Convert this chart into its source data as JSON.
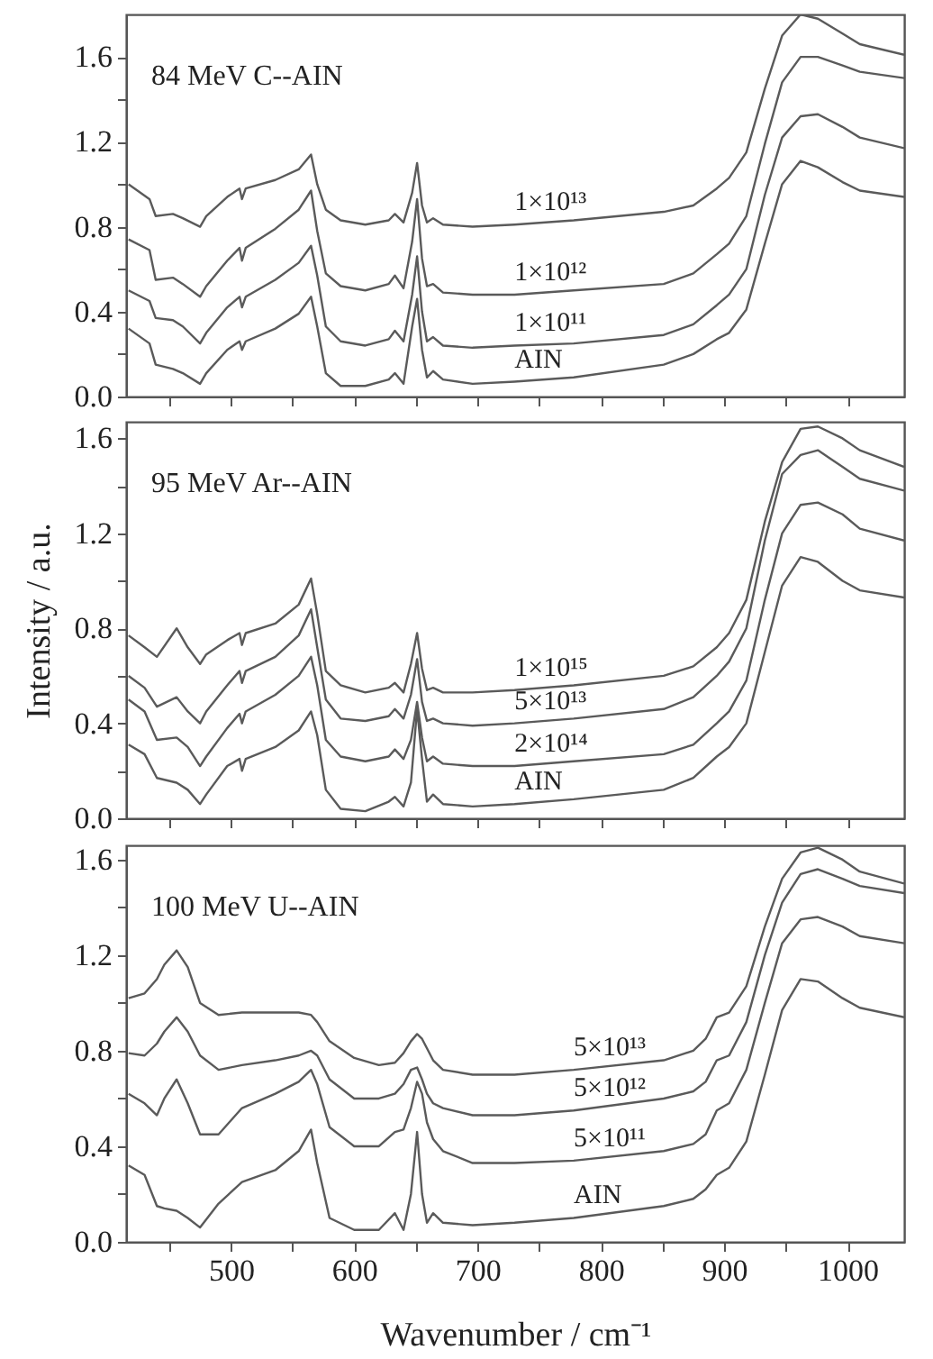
{
  "chart_data": [
    {
      "type": "line",
      "title": "84 MeV C--AIN",
      "tick_labels": "y",
      "x": [
        417,
        434,
        439,
        453,
        461,
        475,
        480,
        497,
        507,
        509,
        512,
        536,
        555,
        565,
        570,
        577,
        589,
        609,
        628,
        633,
        640,
        647,
        651,
        655,
        659,
        664,
        672,
        696,
        730,
        778,
        851,
        875,
        894,
        904,
        918,
        933,
        947,
        962,
        976,
        996,
        1010,
        1046
      ],
      "series": [
        {
          "name": "AIN",
          "color": "#5a5a5a",
          "values": [
            0.32,
            0.25,
            0.15,
            0.13,
            0.11,
            0.06,
            0.11,
            0.22,
            0.26,
            0.22,
            0.26,
            0.32,
            0.39,
            0.47,
            0.33,
            0.11,
            0.05,
            0.05,
            0.08,
            0.11,
            0.06,
            0.33,
            0.46,
            0.22,
            0.09,
            0.12,
            0.08,
            0.06,
            0.07,
            0.09,
            0.15,
            0.2,
            0.27,
            0.3,
            0.41,
            0.72,
            1.0,
            1.11,
            1.08,
            1.01,
            0.97,
            0.94
          ]
        },
        {
          "name": "1×10¹¹",
          "color": "#5a5a5a",
          "values": [
            0.5,
            0.45,
            0.37,
            0.36,
            0.33,
            0.25,
            0.3,
            0.42,
            0.47,
            0.42,
            0.47,
            0.55,
            0.63,
            0.71,
            0.57,
            0.33,
            0.26,
            0.24,
            0.27,
            0.31,
            0.26,
            0.48,
            0.66,
            0.4,
            0.26,
            0.28,
            0.24,
            0.23,
            0.24,
            0.25,
            0.29,
            0.34,
            0.43,
            0.48,
            0.6,
            0.95,
            1.22,
            1.32,
            1.33,
            1.27,
            1.22,
            1.17
          ]
        },
        {
          "name": "1×10¹²",
          "color": "#5a5a5a",
          "values": [
            0.74,
            0.69,
            0.55,
            0.56,
            0.53,
            0.47,
            0.52,
            0.64,
            0.7,
            0.64,
            0.7,
            0.79,
            0.88,
            0.97,
            0.78,
            0.58,
            0.52,
            0.5,
            0.53,
            0.57,
            0.51,
            0.73,
            0.93,
            0.65,
            0.52,
            0.53,
            0.49,
            0.48,
            0.48,
            0.5,
            0.53,
            0.58,
            0.67,
            0.72,
            0.85,
            1.19,
            1.48,
            1.6,
            1.6,
            1.56,
            1.53,
            1.5
          ]
        },
        {
          "name": "1×10¹³",
          "color": "#5a5a5a",
          "values": [
            1.0,
            0.93,
            0.85,
            0.86,
            0.84,
            0.8,
            0.85,
            0.94,
            0.98,
            0.93,
            0.98,
            1.02,
            1.07,
            1.14,
            1.0,
            0.88,
            0.83,
            0.81,
            0.83,
            0.86,
            0.82,
            0.96,
            1.1,
            0.9,
            0.82,
            0.84,
            0.81,
            0.8,
            0.81,
            0.83,
            0.87,
            0.9,
            0.98,
            1.03,
            1.15,
            1.45,
            1.7,
            1.8,
            1.78,
            1.71,
            1.66,
            1.61
          ]
        }
      ],
      "xlim": [
        415,
        1046
      ],
      "ylim": [
        0,
        1.8
      ],
      "xticks": [
        {
          "value": 450,
          "label": null
        },
        {
          "value": 500,
          "label": null
        },
        {
          "value": 550,
          "label": null
        },
        {
          "value": 600,
          "label": null
        },
        {
          "value": 650,
          "label": null
        },
        {
          "value": 700,
          "label": null
        },
        {
          "value": 750,
          "label": null
        },
        {
          "value": 800,
          "label": null
        },
        {
          "value": 850,
          "label": null
        },
        {
          "value": 900,
          "label": null
        },
        {
          "value": 950,
          "label": null
        },
        {
          "value": 1000,
          "label": null
        }
      ],
      "yticks": [
        {
          "value": 0,
          "label": "0.0"
        },
        {
          "value": 0.2,
          "label": null
        },
        0.4,
        {
          "value": 0.6,
          "label": null
        },
        0.8,
        {
          "value": 1.0,
          "label": null
        },
        1.2,
        {
          "value": 1.4,
          "label": null
        },
        1.6
      ]
    },
    {
      "type": "line",
      "title": "95 MeV Ar--AIN",
      "ylabel": "Intensity / a.u.",
      "tick_labels": "y",
      "x": [
        417,
        430,
        440,
        456,
        465,
        475,
        480,
        497,
        507,
        509,
        512,
        536,
        555,
        565,
        570,
        577,
        589,
        609,
        628,
        633,
        640,
        646,
        651,
        655,
        659,
        664,
        672,
        696,
        730,
        778,
        851,
        875,
        894,
        904,
        918,
        933,
        947,
        962,
        976,
        996,
        1010,
        1046
      ],
      "series": [
        {
          "name": "AIN",
          "color": "#5a5a5a",
          "values": [
            0.31,
            0.27,
            0.17,
            0.15,
            0.12,
            0.06,
            0.1,
            0.22,
            0.25,
            0.2,
            0.25,
            0.3,
            0.37,
            0.45,
            0.35,
            0.12,
            0.04,
            0.03,
            0.07,
            0.09,
            0.05,
            0.15,
            0.46,
            0.25,
            0.07,
            0.1,
            0.06,
            0.05,
            0.06,
            0.08,
            0.12,
            0.17,
            0.26,
            0.3,
            0.4,
            0.7,
            0.98,
            1.1,
            1.08,
            1.0,
            0.96,
            0.93
          ]
        },
        {
          "name": "2×10¹⁴",
          "color": "#5a5a5a",
          "values": [
            0.5,
            0.45,
            0.33,
            0.34,
            0.3,
            0.22,
            0.26,
            0.38,
            0.44,
            0.4,
            0.45,
            0.52,
            0.6,
            0.68,
            0.56,
            0.33,
            0.26,
            0.24,
            0.26,
            0.29,
            0.25,
            0.33,
            0.49,
            0.34,
            0.24,
            0.26,
            0.23,
            0.22,
            0.22,
            0.24,
            0.27,
            0.31,
            0.4,
            0.45,
            0.58,
            0.92,
            1.2,
            1.32,
            1.33,
            1.28,
            1.22,
            1.17
          ]
        },
        {
          "name": "5×10¹³",
          "color": "#5a5a5a",
          "values": [
            0.6,
            0.55,
            0.47,
            0.51,
            0.45,
            0.4,
            0.45,
            0.56,
            0.62,
            0.57,
            0.62,
            0.68,
            0.77,
            0.88,
            0.72,
            0.5,
            0.42,
            0.41,
            0.43,
            0.46,
            0.42,
            0.52,
            0.67,
            0.49,
            0.41,
            0.42,
            0.4,
            0.39,
            0.4,
            0.42,
            0.46,
            0.51,
            0.6,
            0.66,
            0.8,
            1.17,
            1.45,
            1.53,
            1.55,
            1.48,
            1.43,
            1.38
          ]
        },
        {
          "name": "1×10¹⁵",
          "color": "#5a5a5a",
          "values": [
            0.77,
            0.72,
            0.68,
            0.8,
            0.72,
            0.65,
            0.69,
            0.75,
            0.78,
            0.73,
            0.78,
            0.82,
            0.9,
            1.01,
            0.86,
            0.62,
            0.56,
            0.53,
            0.55,
            0.57,
            0.53,
            0.65,
            0.78,
            0.63,
            0.54,
            0.55,
            0.53,
            0.53,
            0.54,
            0.56,
            0.6,
            0.64,
            0.72,
            0.78,
            0.92,
            1.25,
            1.5,
            1.64,
            1.65,
            1.6,
            1.55,
            1.48
          ]
        }
      ],
      "xlim": [
        415,
        1046
      ],
      "ylim": [
        0,
        1.67
      ],
      "xticks": [
        {
          "value": 450,
          "label": null
        },
        {
          "value": 500,
          "label": null
        },
        {
          "value": 550,
          "label": null
        },
        {
          "value": 600,
          "label": null
        },
        {
          "value": 650,
          "label": null
        },
        {
          "value": 700,
          "label": null
        },
        {
          "value": 750,
          "label": null
        },
        {
          "value": 800,
          "label": null
        },
        {
          "value": 850,
          "label": null
        },
        {
          "value": 900,
          "label": null
        },
        {
          "value": 950,
          "label": null
        },
        {
          "value": 1000,
          "label": null
        }
      ],
      "yticks": [
        {
          "value": 0,
          "label": "0.0"
        },
        {
          "value": 0.2,
          "label": null
        },
        0.4,
        {
          "value": 0.6,
          "label": null
        },
        0.8,
        {
          "value": 1.0,
          "label": null
        },
        1.2,
        {
          "value": 1.4,
          "label": null
        },
        1.6
      ]
    },
    {
      "type": "line",
      "title": "100 MeV U--AIN",
      "xlabel": "Wavenumber / cm⁻¹",
      "x": [
        417,
        430,
        440,
        446,
        456,
        465,
        475,
        490,
        509,
        536,
        555,
        565,
        570,
        580,
        600,
        620,
        633,
        640,
        646,
        651,
        655,
        659,
        664,
        672,
        696,
        730,
        778,
        851,
        875,
        885,
        894,
        904,
        918,
        933,
        947,
        962,
        976,
        996,
        1010,
        1046
      ],
      "series": [
        {
          "name": "AIN",
          "color": "#5a5a5a",
          "values": [
            0.32,
            0.28,
            0.15,
            0.14,
            0.13,
            0.1,
            0.06,
            0.16,
            0.25,
            0.3,
            0.38,
            0.47,
            0.33,
            0.1,
            0.05,
            0.05,
            0.12,
            0.05,
            0.2,
            0.46,
            0.2,
            0.08,
            0.12,
            0.08,
            0.07,
            0.08,
            0.1,
            0.15,
            0.18,
            0.22,
            0.28,
            0.31,
            0.42,
            0.7,
            0.97,
            1.1,
            1.09,
            1.02,
            0.98,
            0.94
          ]
        },
        {
          "name": "5×10¹¹",
          "color": "#5a5a5a",
          "values": [
            0.62,
            0.58,
            0.53,
            0.6,
            0.68,
            0.58,
            0.45,
            0.45,
            0.56,
            0.62,
            0.67,
            0.72,
            0.66,
            0.48,
            0.4,
            0.4,
            0.46,
            0.47,
            0.56,
            0.67,
            0.62,
            0.5,
            0.43,
            0.38,
            0.33,
            0.33,
            0.34,
            0.38,
            0.41,
            0.45,
            0.55,
            0.58,
            0.72,
            1.0,
            1.25,
            1.35,
            1.36,
            1.32,
            1.28,
            1.25
          ]
        },
        {
          "name": "5×10¹²",
          "color": "#5a5a5a",
          "values": [
            0.79,
            0.78,
            0.83,
            0.88,
            0.94,
            0.88,
            0.78,
            0.72,
            0.74,
            0.76,
            0.78,
            0.8,
            0.78,
            0.68,
            0.6,
            0.6,
            0.62,
            0.66,
            0.72,
            0.73,
            0.68,
            0.62,
            0.58,
            0.56,
            0.53,
            0.53,
            0.55,
            0.6,
            0.63,
            0.67,
            0.76,
            0.78,
            0.92,
            1.2,
            1.42,
            1.54,
            1.56,
            1.52,
            1.49,
            1.46
          ]
        },
        {
          "name": "5×10¹³",
          "color": "#5a5a5a",
          "values": [
            1.02,
            1.04,
            1.1,
            1.16,
            1.22,
            1.15,
            1.0,
            0.95,
            0.96,
            0.96,
            0.96,
            0.95,
            0.92,
            0.84,
            0.77,
            0.74,
            0.75,
            0.79,
            0.84,
            0.87,
            0.85,
            0.81,
            0.76,
            0.72,
            0.7,
            0.7,
            0.72,
            0.76,
            0.8,
            0.85,
            0.94,
            0.96,
            1.07,
            1.32,
            1.52,
            1.63,
            1.65,
            1.6,
            1.55,
            1.5
          ]
        }
      ],
      "xlim": [
        415,
        1046
      ],
      "ylim": [
        0,
        1.66
      ],
      "xticks": [
        {
          "value": 450,
          "label": null
        },
        500,
        {
          "value": 550,
          "label": null
        },
        600,
        {
          "value": 650,
          "label": null
        },
        700,
        {
          "value": 750,
          "label": null
        },
        800,
        {
          "value": 850,
          "label": null
        },
        900,
        {
          "value": 950,
          "label": null
        },
        1000
      ],
      "yticks": [
        {
          "value": 0,
          "label": "0.0"
        },
        {
          "value": 0.2,
          "label": null
        },
        0.4,
        {
          "value": 0.6,
          "label": null
        },
        0.8,
        {
          "value": 1.0,
          "label": null
        },
        1.2,
        {
          "value": 1.4,
          "label": null
        },
        1.6
      ]
    }
  ]
}
